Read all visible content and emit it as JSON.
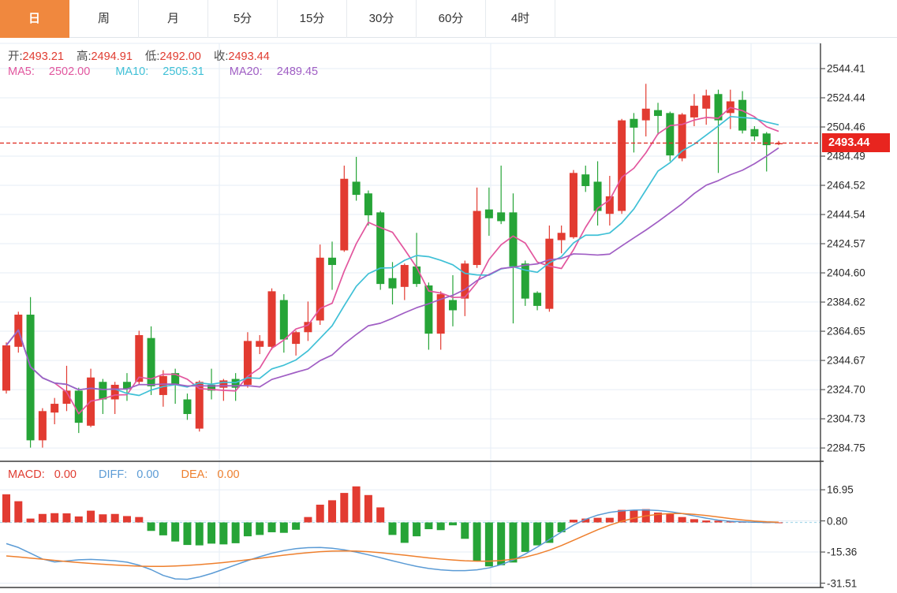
{
  "tabs": {
    "items": [
      {
        "label": "日",
        "active": true
      },
      {
        "label": "周",
        "active": false
      },
      {
        "label": "月",
        "active": false
      },
      {
        "label": "5分",
        "active": false
      },
      {
        "label": "15分",
        "active": false
      },
      {
        "label": "30分",
        "active": false
      },
      {
        "label": "60分",
        "active": false
      },
      {
        "label": "4时",
        "active": false
      }
    ]
  },
  "ohlc": {
    "open_label": "开:",
    "open": "2493.21",
    "high_label": "高:",
    "high": "2494.91",
    "low_label": "低:",
    "low": "2492.00",
    "close_label": "收:",
    "close": "2493.44"
  },
  "ma": {
    "ma5_label": "MA5:",
    "ma5": "2502.00",
    "ma10_label": "MA10:",
    "ma10": "2505.31",
    "ma20_label": "MA20:",
    "ma20": "2489.45"
  },
  "macd_readout": {
    "macd_label": "MACD:",
    "macd": "0.00",
    "diff_label": "DIFF:",
    "diff": "0.00",
    "dea_label": "DEA:",
    "dea": "0.00"
  },
  "price_axis": {
    "current_price": "2493.44",
    "tick_labels": [
      "2544.41",
      "2524.44",
      "2504.46",
      "2484.49",
      "2464.52",
      "2444.54",
      "2424.57",
      "2404.60",
      "2384.62",
      "2364.65",
      "2344.67",
      "2324.70",
      "2304.73",
      "2284.75"
    ]
  },
  "macd_axis": {
    "tick_labels": [
      "16.95",
      "0.80",
      "-15.36",
      "-31.51"
    ]
  },
  "colors": {
    "up_red": "#e23b31",
    "down_green": "#26a437",
    "ma5_pink": "#e2569e",
    "ma10_cyan": "#3fc0d6",
    "ma20_purple": "#a05ec4",
    "diff_blue": "#5b9bd5",
    "dea_orange": "#ee7f2d",
    "value_red_text": "#e03c31",
    "badge_red": "#e8251f",
    "tab_orange": "#f0883e",
    "grid": "#e6edf5",
    "axis_dark": "#3c3c3c",
    "zero_dash_cyan": "#a8d8ea",
    "current_dash_red": "#e0342b"
  },
  "chart_data": {
    "type": "candlestick",
    "title": "",
    "legend_position": "top-left-overlay",
    "grid": true,
    "panels": [
      {
        "name": "price",
        "ylabel": "price",
        "y_ticks": [
          2544.41,
          2524.44,
          2504.46,
          2484.49,
          2464.52,
          2444.54,
          2424.57,
          2404.6,
          2384.62,
          2364.65,
          2344.67,
          2324.7,
          2304.73,
          2284.75
        ],
        "ylim": [
          2275.0,
          2562.0
        ],
        "current_price": 2493.44,
        "overlays": [
          "MA5",
          "MA10",
          "MA20"
        ],
        "candles_ohlc": [
          [
            2324,
            2357,
            2322,
            2355
          ],
          [
            2354,
            2378,
            2350,
            2376
          ],
          [
            2376,
            2388,
            2285,
            2290
          ],
          [
            2290,
            2312,
            2285,
            2310
          ],
          [
            2309,
            2319,
            2301,
            2315
          ],
          [
            2315,
            2341,
            2310,
            2324
          ],
          [
            2324,
            2326,
            2295,
            2302
          ],
          [
            2300,
            2339,
            2299,
            2333
          ],
          [
            2330,
            2332,
            2308,
            2318
          ],
          [
            2318,
            2330,
            2308,
            2328
          ],
          [
            2330,
            2336,
            2317,
            2325
          ],
          [
            2330,
            2365,
            2328,
            2362
          ],
          [
            2360,
            2368,
            2321,
            2327
          ],
          [
            2321,
            2338,
            2313,
            2334
          ],
          [
            2336,
            2339,
            2315,
            2328
          ],
          [
            2318,
            2322,
            2304,
            2308
          ],
          [
            2298,
            2331,
            2296,
            2330
          ],
          [
            2328,
            2339,
            2318,
            2324
          ],
          [
            2326,
            2332,
            2317,
            2331
          ],
          [
            2332,
            2336,
            2317,
            2326
          ],
          [
            2328,
            2364,
            2326,
            2358
          ],
          [
            2354,
            2362,
            2349,
            2358
          ],
          [
            2354,
            2394,
            2352,
            2392
          ],
          [
            2386,
            2390,
            2350,
            2359
          ],
          [
            2356,
            2365,
            2348,
            2364
          ],
          [
            2364,
            2385,
            2358,
            2371
          ],
          [
            2372,
            2424,
            2369,
            2415
          ],
          [
            2415,
            2426,
            2393,
            2410
          ],
          [
            2420,
            2478,
            2419,
            2469
          ],
          [
            2467,
            2484,
            2454,
            2458
          ],
          [
            2459,
            2461,
            2437,
            2444
          ],
          [
            2446,
            2447,
            2393,
            2397
          ],
          [
            2401,
            2412,
            2383,
            2394
          ],
          [
            2395,
            2411,
            2386,
            2410
          ],
          [
            2409,
            2432,
            2395,
            2397
          ],
          [
            2396,
            2398,
            2352,
            2363
          ],
          [
            2363,
            2392,
            2352,
            2390
          ],
          [
            2386,
            2403,
            2368,
            2379
          ],
          [
            2387,
            2413,
            2375,
            2411
          ],
          [
            2410,
            2463,
            2408,
            2447
          ],
          [
            2448,
            2463,
            2430,
            2442
          ],
          [
            2446,
            2478,
            2438,
            2440
          ],
          [
            2446,
            2459,
            2370,
            2409
          ],
          [
            2411,
            2413,
            2382,
            2387
          ],
          [
            2391,
            2392,
            2379,
            2382
          ],
          [
            2380,
            2437,
            2378,
            2428
          ],
          [
            2427,
            2437,
            2418,
            2432
          ],
          [
            2429,
            2475,
            2428,
            2473
          ],
          [
            2472,
            2478,
            2460,
            2464
          ],
          [
            2467,
            2481,
            2437,
            2447
          ],
          [
            2445,
            2471,
            2437,
            2457
          ],
          [
            2447,
            2510,
            2445,
            2509
          ],
          [
            2510,
            2514,
            2487,
            2504
          ],
          [
            2509,
            2534,
            2498,
            2517
          ],
          [
            2516,
            2521,
            2499,
            2512
          ],
          [
            2514,
            2515,
            2481,
            2485
          ],
          [
            2483,
            2514,
            2481,
            2513
          ],
          [
            2511,
            2527,
            2505,
            2519
          ],
          [
            2517,
            2530,
            2506,
            2526
          ],
          [
            2527,
            2530,
            2473,
            2509
          ],
          [
            2514,
            2530,
            2503,
            2522
          ],
          [
            2523,
            2529,
            2500,
            2502
          ],
          [
            2503,
            2505,
            2495,
            2498
          ],
          [
            2500,
            2501,
            2474,
            2492
          ],
          [
            2493.21,
            2494.91,
            2492.0,
            2493.44
          ]
        ]
      },
      {
        "name": "macd",
        "y_ticks": [
          16.95,
          0.8,
          -15.36,
          -31.51
        ],
        "ylim": [
          -35,
          21
        ],
        "histogram": [
          14.6,
          11.0,
          2.0,
          4.4,
          4.8,
          4.7,
          3.1,
          6.1,
          4.2,
          4.4,
          3.3,
          2.8,
          -4.4,
          -6.7,
          -9.9,
          -11.7,
          -11.9,
          -11.0,
          -11.4,
          -10.8,
          -7.2,
          -6.5,
          -5.1,
          -5.4,
          -3.8,
          2.8,
          9.2,
          11.5,
          15.3,
          18.7,
          14.2,
          7.8,
          -6.5,
          -10.6,
          -7.2,
          -3.5,
          -4.0,
          -1.5,
          -8.5,
          -20.1,
          -22.8,
          -22.2,
          -20.8,
          -15.3,
          -11.9,
          -10.6,
          -5.1,
          1.4,
          2.0,
          2.4,
          2.4,
          6.5,
          6.5,
          6.9,
          5.1,
          4.4,
          2.8,
          1.7,
          1.0,
          0.9,
          0.6,
          0.3,
          0.2,
          0.1,
          0.0
        ],
        "diff": [
          -11.0,
          -13.0,
          -16.0,
          -19.0,
          -20.5,
          -20.0,
          -19.4,
          -19.2,
          -19.5,
          -19.9,
          -20.6,
          -22.2,
          -24.5,
          -27.5,
          -29.3,
          -29.5,
          -28.3,
          -26.5,
          -24.3,
          -22.0,
          -19.8,
          -17.8,
          -16.0,
          -14.6,
          -13.6,
          -13.1,
          -13.0,
          -13.4,
          -14.2,
          -15.4,
          -16.8,
          -18.3,
          -19.9,
          -21.4,
          -22.8,
          -23.9,
          -24.6,
          -25.0,
          -25.0,
          -24.6,
          -23.6,
          -21.9,
          -19.5,
          -16.4,
          -12.8,
          -8.9,
          -5.0,
          -1.4,
          1.6,
          3.8,
          5.2,
          6.0,
          6.4,
          6.5,
          6.2,
          5.6,
          4.6,
          3.4,
          2.2,
          1.2,
          0.6,
          0.3,
          0.1,
          0.0,
          0.0
        ],
        "dea": [
          -17.4,
          -17.9,
          -18.5,
          -19.1,
          -19.7,
          -20.3,
          -20.8,
          -21.3,
          -21.7,
          -22.1,
          -22.4,
          -22.7,
          -22.8,
          -22.8,
          -22.6,
          -22.3,
          -21.9,
          -21.4,
          -20.8,
          -20.1,
          -19.4,
          -18.6,
          -17.8,
          -17.0,
          -16.3,
          -15.7,
          -15.2,
          -14.9,
          -14.8,
          -14.9,
          -15.2,
          -15.7,
          -16.3,
          -17.0,
          -17.7,
          -18.4,
          -19.0,
          -19.5,
          -19.9,
          -20.1,
          -20.1,
          -19.8,
          -19.1,
          -18.0,
          -16.4,
          -14.4,
          -12.0,
          -9.3,
          -6.5,
          -3.8,
          -1.4,
          0.6,
          2.2,
          3.4,
          4.2,
          4.6,
          4.6,
          4.2,
          3.6,
          2.8,
          2.0,
          1.3,
          0.7,
          0.3,
          0.1
        ]
      }
    ]
  }
}
